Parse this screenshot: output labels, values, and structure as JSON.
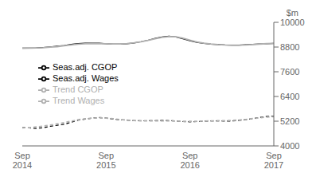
{
  "chart_data": {
    "type": "line",
    "ylabel": "$m",
    "categories": [
      "Sep\n2014",
      null,
      null,
      null,
      null,
      null,
      null,
      null,
      null,
      null,
      null,
      null,
      "Sep\n2015",
      null,
      null,
      null,
      null,
      null,
      null,
      null,
      null,
      null,
      null,
      null,
      "Sep\n2016",
      null,
      null,
      null,
      null,
      null,
      null,
      null,
      null,
      null,
      null,
      null,
      "Sep\n2017"
    ],
    "series": [
      {
        "name": "Seas.adj. Wages",
        "color": "black",
        "line_style": "solid",
        "values": [
          8750,
          8750,
          8760,
          8780,
          8810,
          8840,
          8870,
          8930,
          8970,
          8990,
          8990,
          8990,
          8960,
          8940,
          8940,
          8960,
          9000,
          9060,
          9130,
          9220,
          9290,
          9330,
          9290,
          9200,
          9100,
          9030,
          8980,
          8940,
          8920,
          8900,
          8890,
          8890,
          8910,
          8930,
          8950,
          8960,
          8980
        ]
      },
      {
        "name": "Trend Wages",
        "color": "#b0b0b0",
        "line_style": "solid",
        "values": [
          8740,
          8745,
          8755,
          8770,
          8795,
          8820,
          8860,
          8900,
          8940,
          8960,
          8965,
          8965,
          8960,
          8950,
          8955,
          8970,
          9010,
          9060,
          9120,
          9200,
          9270,
          9310,
          9300,
          9230,
          9130,
          9050,
          8990,
          8950,
          8920,
          8900,
          8890,
          8890,
          8900,
          8920,
          8945,
          8965,
          8975
        ]
      },
      {
        "name": "Seas.adj. CGOP",
        "color": "black",
        "line_style": "dashed",
        "values": [
          4900,
          4870,
          4850,
          4880,
          4950,
          5000,
          5050,
          5150,
          5250,
          5300,
          5350,
          5380,
          5350,
          5300,
          5270,
          5250,
          5230,
          5220,
          5220,
          5230,
          5240,
          5230,
          5210,
          5180,
          5170,
          5180,
          5200,
          5210,
          5220,
          5200,
          5210,
          5240,
          5270,
          5330,
          5390,
          5430,
          5450
        ]
      },
      {
        "name": "Trend CGOP",
        "color": "#b0b0b0",
        "line_style": "dashed",
        "values": [
          4880,
          4885,
          4920,
          4960,
          5010,
          5070,
          5130,
          5200,
          5270,
          5320,
          5350,
          5360,
          5350,
          5320,
          5280,
          5250,
          5230,
          5220,
          5220,
          5220,
          5220,
          5215,
          5205,
          5195,
          5190,
          5195,
          5205,
          5215,
          5220,
          5225,
          5235,
          5255,
          5285,
          5330,
          5370,
          5400,
          5420
        ]
      }
    ],
    "ylim": [
      4000,
      10000
    ],
    "yticks": [
      4000,
      5200,
      6400,
      7600,
      8800,
      10000
    ],
    "grid": false,
    "legend": "left"
  }
}
